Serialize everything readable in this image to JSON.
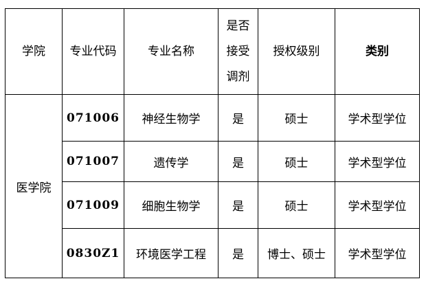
{
  "headers": [
    "学院",
    "专业代码",
    "专业名称",
    "是否接受调剂",
    "授权级别",
    "类别"
  ],
  "header_stacked": [
    "是否",
    "接受",
    "调剂"
  ],
  "college": "医学院",
  "rows": [
    {
      "code": "071006",
      "name": "神经生物学",
      "adjust": "是",
      "level": "硕士",
      "type": "学术型学位"
    },
    {
      "code": "071007",
      "name": "遗传学",
      "adjust": "是",
      "level": "硕士",
      "type": "学术型学位"
    },
    {
      "code": "071009",
      "name": "细胞生物学",
      "adjust": "是",
      "level": "硕士",
      "type": "学术型学位"
    },
    {
      "code": "0830Z1",
      "name": "环境医学工程",
      "adjust": "是",
      "level": "博士、硕士",
      "type": "学术型学位"
    }
  ]
}
